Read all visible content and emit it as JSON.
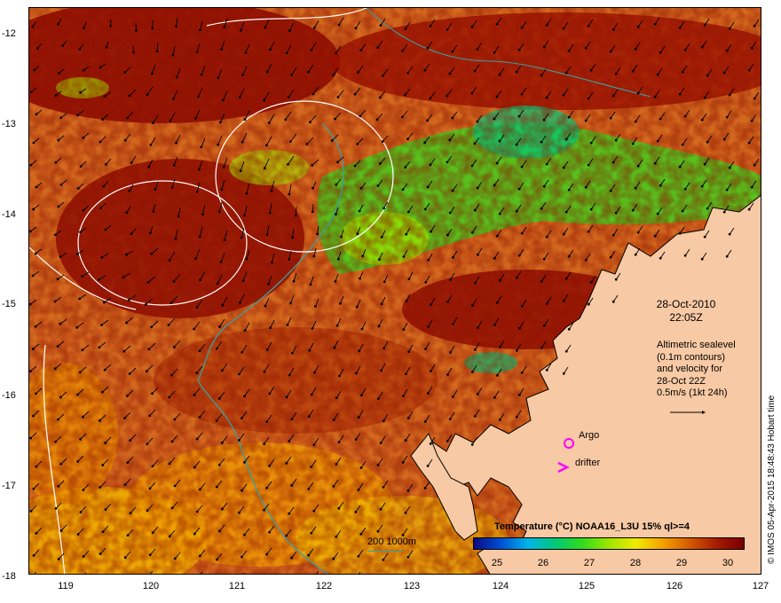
{
  "map": {
    "lat_labels": [
      "-12",
      "-13",
      "-14",
      "-15",
      "-16",
      "-17",
      "-18"
    ],
    "lon_labels": [
      "119",
      "120",
      "121",
      "122",
      "123",
      "124",
      "125",
      "126",
      "127"
    ],
    "date": "28-Oct-2010",
    "time": "22:05Z",
    "description_lines": [
      "Altimetric sealevel",
      "(0.1m contours)",
      "and velocity for",
      "28-Oct 22Z",
      "0.5m/s (1kt 24h)"
    ],
    "argo_label": "Argo",
    "drifter_label": "drifter",
    "colorbar_title": "Temperature (°C) NOAA16_L3U 15% ql>=4",
    "colorbar_ticks": [
      "25",
      "26",
      "27",
      "28",
      "29",
      "30"
    ],
    "depth_legend": "200  1000m",
    "credit": "© IMOS 05-Apr-2015 18:48:43 Hobart time",
    "colors": {
      "land": "#f7c9a4",
      "sst_hot": "#8b0a00",
      "sst_warm": "#d2691e",
      "sst_mid": "#f0a000",
      "sst_cool": "#2fdc1e",
      "contour": "#ffffff",
      "bathymetry": "#3aa0a0",
      "argo": "#ff00ff",
      "drifter": "#ff00ff"
    }
  }
}
